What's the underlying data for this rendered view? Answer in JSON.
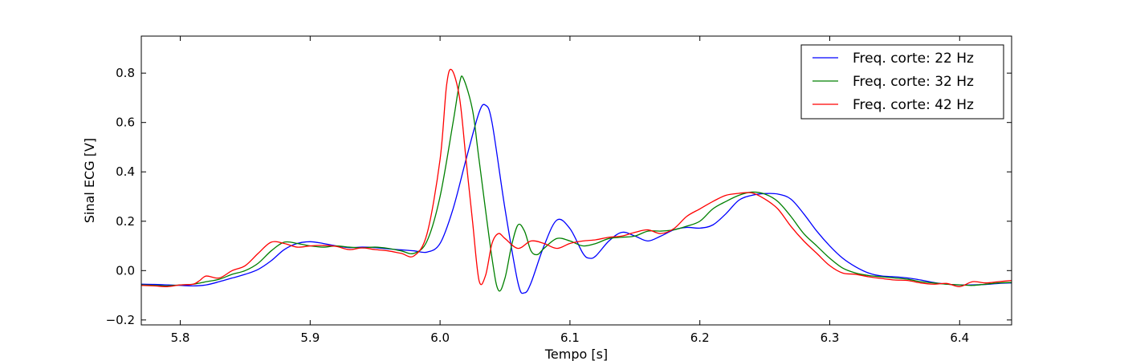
{
  "chart_data": {
    "type": "line",
    "xlabel": "Tempo [s]",
    "ylabel": "Sinal ECG [V]",
    "xlim": [
      5.77,
      6.44
    ],
    "ylim": [
      -0.22,
      0.95
    ],
    "xticks": [
      5.8,
      5.9,
      6.0,
      6.1,
      6.2,
      6.3,
      6.4
    ],
    "xtick_labels": [
      "5.8",
      "5.9",
      "6.0",
      "6.1",
      "6.2",
      "6.3",
      "6.4"
    ],
    "yticks": [
      -0.2,
      0.0,
      0.2,
      0.4,
      0.6,
      0.8
    ],
    "ytick_labels": [
      "−0.2",
      "0.0",
      "0.2",
      "0.4",
      "0.6",
      "0.8"
    ],
    "grid": false,
    "legend_position": "top-right",
    "series": [
      {
        "name": "Freq. corte: 22 Hz",
        "color": "#0000ff",
        "points": [
          [
            5.77,
            -0.055
          ],
          [
            5.78,
            -0.056
          ],
          [
            5.79,
            -0.058
          ],
          [
            5.8,
            -0.06
          ],
          [
            5.81,
            -0.062
          ],
          [
            5.82,
            -0.058
          ],
          [
            5.83,
            -0.045
          ],
          [
            5.84,
            -0.03
          ],
          [
            5.85,
            -0.015
          ],
          [
            5.86,
            0.005
          ],
          [
            5.87,
            0.04
          ],
          [
            5.88,
            0.085
          ],
          [
            5.89,
            0.11
          ],
          [
            5.9,
            0.117
          ],
          [
            5.91,
            0.11
          ],
          [
            5.92,
            0.1
          ],
          [
            5.93,
            0.093
          ],
          [
            5.94,
            0.095
          ],
          [
            5.95,
            0.093
          ],
          [
            5.96,
            0.088
          ],
          [
            5.97,
            0.084
          ],
          [
            5.98,
            0.08
          ],
          [
            5.99,
            0.075
          ],
          [
            6.0,
            0.11
          ],
          [
            6.01,
            0.25
          ],
          [
            6.02,
            0.45
          ],
          [
            6.03,
            0.64
          ],
          [
            6.035,
            0.67
          ],
          [
            6.04,
            0.6
          ],
          [
            6.05,
            0.25
          ],
          [
            6.06,
            -0.05
          ],
          [
            6.065,
            -0.09
          ],
          [
            6.07,
            -0.05
          ],
          [
            6.08,
            0.1
          ],
          [
            6.09,
            0.205
          ],
          [
            6.1,
            0.17
          ],
          [
            6.11,
            0.07
          ],
          [
            6.115,
            0.05
          ],
          [
            6.12,
            0.06
          ],
          [
            6.13,
            0.12
          ],
          [
            6.14,
            0.155
          ],
          [
            6.15,
            0.14
          ],
          [
            6.16,
            0.12
          ],
          [
            6.17,
            0.14
          ],
          [
            6.18,
            0.165
          ],
          [
            6.19,
            0.175
          ],
          [
            6.2,
            0.172
          ],
          [
            6.21,
            0.185
          ],
          [
            6.22,
            0.23
          ],
          [
            6.23,
            0.285
          ],
          [
            6.24,
            0.305
          ],
          [
            6.25,
            0.312
          ],
          [
            6.26,
            0.31
          ],
          [
            6.27,
            0.29
          ],
          [
            6.28,
            0.23
          ],
          [
            6.29,
            0.16
          ],
          [
            6.3,
            0.1
          ],
          [
            6.31,
            0.05
          ],
          [
            6.32,
            0.015
          ],
          [
            6.33,
            -0.01
          ],
          [
            6.34,
            -0.022
          ],
          [
            6.35,
            -0.025
          ],
          [
            6.36,
            -0.03
          ],
          [
            6.37,
            -0.038
          ],
          [
            6.38,
            -0.048
          ],
          [
            6.39,
            -0.055
          ],
          [
            6.4,
            -0.058
          ],
          [
            6.41,
            -0.058
          ],
          [
            6.42,
            -0.056
          ],
          [
            6.43,
            -0.052
          ],
          [
            6.44,
            -0.05
          ]
        ]
      },
      {
        "name": "Freq. corte: 32 Hz",
        "color": "#008000",
        "points": [
          [
            5.77,
            -0.058
          ],
          [
            5.78,
            -0.06
          ],
          [
            5.79,
            -0.062
          ],
          [
            5.8,
            -0.058
          ],
          [
            5.81,
            -0.055
          ],
          [
            5.82,
            -0.045
          ],
          [
            5.83,
            -0.035
          ],
          [
            5.84,
            -0.015
          ],
          [
            5.85,
            0.0
          ],
          [
            5.86,
            0.03
          ],
          [
            5.87,
            0.08
          ],
          [
            5.88,
            0.115
          ],
          [
            5.89,
            0.11
          ],
          [
            5.9,
            0.1
          ],
          [
            5.91,
            0.095
          ],
          [
            5.92,
            0.1
          ],
          [
            5.93,
            0.095
          ],
          [
            5.94,
            0.092
          ],
          [
            5.95,
            0.095
          ],
          [
            5.96,
            0.09
          ],
          [
            5.97,
            0.08
          ],
          [
            5.98,
            0.07
          ],
          [
            5.99,
            0.12
          ],
          [
            6.0,
            0.3
          ],
          [
            6.01,
            0.6
          ],
          [
            6.015,
            0.76
          ],
          [
            6.018,
            0.778
          ],
          [
            6.025,
            0.65
          ],
          [
            6.03,
            0.45
          ],
          [
            6.04,
            0.05
          ],
          [
            6.045,
            -0.08
          ],
          [
            6.05,
            -0.03
          ],
          [
            6.055,
            0.1
          ],
          [
            6.06,
            0.185
          ],
          [
            6.065,
            0.16
          ],
          [
            6.07,
            0.08
          ],
          [
            6.075,
            0.065
          ],
          [
            6.08,
            0.09
          ],
          [
            6.09,
            0.13
          ],
          [
            6.1,
            0.12
          ],
          [
            6.11,
            0.1
          ],
          [
            6.12,
            0.11
          ],
          [
            6.13,
            0.13
          ],
          [
            6.14,
            0.135
          ],
          [
            6.15,
            0.14
          ],
          [
            6.16,
            0.16
          ],
          [
            6.17,
            0.16
          ],
          [
            6.18,
            0.165
          ],
          [
            6.19,
            0.18
          ],
          [
            6.2,
            0.2
          ],
          [
            6.21,
            0.25
          ],
          [
            6.22,
            0.28
          ],
          [
            6.23,
            0.305
          ],
          [
            6.24,
            0.318
          ],
          [
            6.25,
            0.31
          ],
          [
            6.26,
            0.28
          ],
          [
            6.27,
            0.22
          ],
          [
            6.28,
            0.15
          ],
          [
            6.29,
            0.1
          ],
          [
            6.3,
            0.05
          ],
          [
            6.31,
            0.01
          ],
          [
            6.32,
            -0.01
          ],
          [
            6.33,
            -0.02
          ],
          [
            6.34,
            -0.025
          ],
          [
            6.35,
            -0.03
          ],
          [
            6.36,
            -0.035
          ],
          [
            6.37,
            -0.045
          ],
          [
            6.38,
            -0.05
          ],
          [
            6.39,
            -0.055
          ],
          [
            6.4,
            -0.058
          ],
          [
            6.41,
            -0.06
          ],
          [
            6.42,
            -0.055
          ],
          [
            6.43,
            -0.05
          ],
          [
            6.44,
            -0.048
          ]
        ]
      },
      {
        "name": "Freq. corte: 42 Hz",
        "color": "#ff0000",
        "points": [
          [
            5.77,
            -0.06
          ],
          [
            5.78,
            -0.062
          ],
          [
            5.79,
            -0.065
          ],
          [
            5.8,
            -0.058
          ],
          [
            5.81,
            -0.055
          ],
          [
            5.815,
            -0.04
          ],
          [
            5.82,
            -0.022
          ],
          [
            5.83,
            -0.03
          ],
          [
            5.84,
            0.0
          ],
          [
            5.85,
            0.02
          ],
          [
            5.86,
            0.07
          ],
          [
            5.87,
            0.115
          ],
          [
            5.88,
            0.11
          ],
          [
            5.89,
            0.095
          ],
          [
            5.9,
            0.1
          ],
          [
            5.91,
            0.102
          ],
          [
            5.92,
            0.098
          ],
          [
            5.93,
            0.085
          ],
          [
            5.94,
            0.092
          ],
          [
            5.95,
            0.085
          ],
          [
            5.96,
            0.08
          ],
          [
            5.97,
            0.07
          ],
          [
            5.98,
            0.06
          ],
          [
            5.99,
            0.15
          ],
          [
            6.0,
            0.45
          ],
          [
            6.005,
            0.75
          ],
          [
            6.009,
            0.813
          ],
          [
            6.015,
            0.7
          ],
          [
            6.02,
            0.45
          ],
          [
            6.025,
            0.2
          ],
          [
            6.03,
            -0.04
          ],
          [
            6.035,
            -0.02
          ],
          [
            6.04,
            0.11
          ],
          [
            6.045,
            0.15
          ],
          [
            6.05,
            0.13
          ],
          [
            6.06,
            0.09
          ],
          [
            6.07,
            0.12
          ],
          [
            6.08,
            0.11
          ],
          [
            6.09,
            0.09
          ],
          [
            6.1,
            0.11
          ],
          [
            6.11,
            0.12
          ],
          [
            6.12,
            0.125
          ],
          [
            6.13,
            0.135
          ],
          [
            6.14,
            0.14
          ],
          [
            6.15,
            0.155
          ],
          [
            6.16,
            0.165
          ],
          [
            6.17,
            0.15
          ],
          [
            6.18,
            0.17
          ],
          [
            6.19,
            0.22
          ],
          [
            6.2,
            0.25
          ],
          [
            6.21,
            0.28
          ],
          [
            6.22,
            0.305
          ],
          [
            6.23,
            0.313
          ],
          [
            6.24,
            0.315
          ],
          [
            6.25,
            0.29
          ],
          [
            6.26,
            0.25
          ],
          [
            6.27,
            0.18
          ],
          [
            6.28,
            0.12
          ],
          [
            6.29,
            0.07
          ],
          [
            6.3,
            0.02
          ],
          [
            6.31,
            -0.01
          ],
          [
            6.32,
            -0.015
          ],
          [
            6.33,
            -0.025
          ],
          [
            6.34,
            -0.032
          ],
          [
            6.35,
            -0.038
          ],
          [
            6.36,
            -0.04
          ],
          [
            6.37,
            -0.05
          ],
          [
            6.38,
            -0.055
          ],
          [
            6.39,
            -0.052
          ],
          [
            6.4,
            -0.065
          ],
          [
            6.41,
            -0.045
          ],
          [
            6.42,
            -0.05
          ],
          [
            6.43,
            -0.045
          ],
          [
            6.44,
            -0.04
          ]
        ]
      }
    ]
  }
}
